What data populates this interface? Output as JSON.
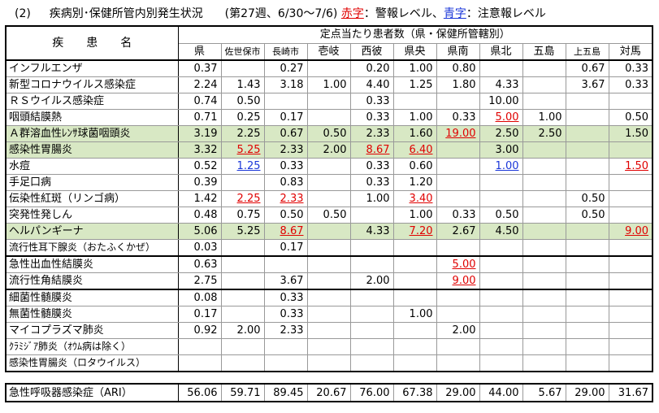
{
  "title": {
    "section": "(2)",
    "main": "疾病別･保健所管内別発生状況",
    "period": "(第27週、6/30〜7/6)",
    "legend_red": "赤字",
    "legend_red_text": "：警報レベル、",
    "legend_blue": "青字",
    "legend_blue_text": "：注意報レベル"
  },
  "header": {
    "disease_col": "疾　　患　　名",
    "group": "定点当たり患者数（県・保健所管轄別）",
    "regions": [
      "県",
      "佐世保市",
      "長崎市",
      "壱岐",
      "西彼",
      "県央",
      "県南",
      "県北",
      "五島",
      "上五島",
      "対馬"
    ]
  },
  "rows": [
    {
      "name": "インフルエンザ",
      "values": [
        "0.37",
        "",
        "0.27",
        "",
        "0.20",
        "1.00",
        "0.80",
        "",
        "",
        "0.67",
        "0.33"
      ],
      "status": [
        "",
        "",
        "",
        "",
        "",
        "",
        "",
        "",
        "",
        "",
        ""
      ]
    },
    {
      "name": "新型コロナウイルス感染症",
      "values": [
        "2.24",
        "1.43",
        "3.18",
        "1.00",
        "4.40",
        "1.25",
        "1.80",
        "4.33",
        "",
        "3.67",
        "0.33"
      ],
      "status": [
        "",
        "",
        "",
        "",
        "",
        "",
        "",
        "",
        "",
        "",
        ""
      ]
    },
    {
      "name": "ＲＳウイルス感染症",
      "values": [
        "0.74",
        "0.50",
        "",
        "",
        "0.33",
        "",
        "",
        "10.00",
        "",
        "",
        ""
      ],
      "status": [
        "",
        "",
        "",
        "",
        "",
        "",
        "",
        "",
        "",
        "",
        ""
      ]
    },
    {
      "name": "咽頭結膜熱",
      "values": [
        "0.71",
        "0.25",
        "0.17",
        "",
        "0.33",
        "1.00",
        "0.33",
        "5.00",
        "1.00",
        "",
        "0.50"
      ],
      "status": [
        "",
        "",
        "",
        "",
        "",
        "",
        "",
        "red",
        "",
        "",
        ""
      ]
    },
    {
      "name": "Ａ群溶血性ﾚﾝｻ球菌咽頭炎",
      "values": [
        "3.19",
        "2.25",
        "0.67",
        "0.50",
        "2.33",
        "1.60",
        "19.00",
        "2.50",
        "2.50",
        "",
        "1.50"
      ],
      "status": [
        "",
        "",
        "",
        "",
        "",
        "",
        "red",
        "",
        "",
        "",
        ""
      ],
      "highlight": true
    },
    {
      "name": "感染性胃腸炎",
      "values": [
        "3.32",
        "5.25",
        "2.33",
        "2.00",
        "8.67",
        "6.40",
        "",
        "3.00",
        "",
        "",
        ""
      ],
      "status": [
        "",
        "red",
        "",
        "",
        "red",
        "red",
        "",
        "",
        "",
        "",
        ""
      ],
      "highlight": true
    },
    {
      "name": "水痘",
      "values": [
        "0.52",
        "1.25",
        "0.33",
        "",
        "0.33",
        "0.60",
        "",
        "1.00",
        "",
        "",
        "1.50"
      ],
      "status": [
        "",
        "blue",
        "",
        "",
        "",
        "",
        "",
        "blue",
        "",
        "",
        "red"
      ]
    },
    {
      "name": "手足口病",
      "values": [
        "0.39",
        "",
        "0.83",
        "",
        "0.33",
        "1.20",
        "",
        "",
        "",
        "",
        ""
      ],
      "status": [
        "",
        "",
        "",
        "",
        "",
        "",
        "",
        "",
        "",
        "",
        ""
      ]
    },
    {
      "name": "伝染性紅斑（リンゴ病）",
      "values": [
        "1.42",
        "2.25",
        "2.33",
        "",
        "1.00",
        "3.40",
        "",
        "",
        "",
        "0.50",
        ""
      ],
      "status": [
        "",
        "red",
        "red",
        "",
        "",
        "red",
        "",
        "",
        "",
        "",
        ""
      ]
    },
    {
      "name": "突発性発しん",
      "values": [
        "0.48",
        "0.75",
        "0.50",
        "0.50",
        "",
        "1.00",
        "0.33",
        "0.50",
        "",
        "0.50",
        ""
      ],
      "status": [
        "",
        "",
        "",
        "",
        "",
        "",
        "",
        "",
        "",
        "",
        ""
      ]
    },
    {
      "name": "ヘルパンギーナ",
      "values": [
        "5.06",
        "5.25",
        "8.67",
        "",
        "4.33",
        "7.20",
        "2.67",
        "4.50",
        "",
        "",
        "9.00"
      ],
      "status": [
        "",
        "",
        "red",
        "",
        "",
        "red",
        "",
        "",
        "",
        "",
        "red"
      ],
      "highlight": true
    },
    {
      "name": "流行性耳下腺炎（おたふくかぜ）",
      "values": [
        "0.03",
        "",
        "0.17",
        "",
        "",
        "",
        "",
        "",
        "",
        "",
        ""
      ],
      "status": [
        "",
        "",
        "",
        "",
        "",
        "",
        "",
        "",
        "",
        "",
        ""
      ]
    },
    {
      "name": "急性出血性結膜炎",
      "values": [
        "0.63",
        "",
        "",
        "",
        "",
        "",
        "5.00",
        "",
        "",
        "",
        ""
      ],
      "status": [
        "",
        "",
        "",
        "",
        "",
        "",
        "red",
        "",
        "",
        "",
        ""
      ]
    },
    {
      "name": "流行性角結膜炎",
      "values": [
        "2.75",
        "",
        "3.67",
        "",
        "2.00",
        "",
        "9.00",
        "",
        "",
        "",
        ""
      ],
      "status": [
        "",
        "",
        "",
        "",
        "",
        "",
        "red",
        "",
        "",
        "",
        ""
      ]
    },
    {
      "name": "細菌性髄膜炎",
      "values": [
        "0.08",
        "",
        "0.33",
        "",
        "",
        "",
        "",
        "",
        "",
        "",
        ""
      ],
      "status": [
        "",
        "",
        "",
        "",
        "",
        "",
        "",
        "",
        "",
        "",
        ""
      ]
    },
    {
      "name": "無菌性髄膜炎",
      "values": [
        "0.17",
        "",
        "0.33",
        "",
        "",
        "1.00",
        "",
        "",
        "",
        "",
        ""
      ],
      "status": [
        "",
        "",
        "",
        "",
        "",
        "",
        "",
        "",
        "",
        "",
        ""
      ]
    },
    {
      "name": "マイコプラズマ肺炎",
      "values": [
        "0.92",
        "2.00",
        "2.33",
        "",
        "",
        "",
        "2.00",
        "",
        "",
        "",
        ""
      ],
      "status": [
        "",
        "",
        "",
        "",
        "",
        "",
        "",
        "",
        "",
        "",
        ""
      ]
    },
    {
      "name": "ｸﾗﾐｼﾞｱ肺炎（ｵｳﾑ病は除く）",
      "values": [
        "",
        "",
        "",
        "",
        "",
        "",
        "",
        "",
        "",
        "",
        ""
      ],
      "status": [
        "",
        "",
        "",
        "",
        "",
        "",
        "",
        "",
        "",
        "",
        ""
      ]
    },
    {
      "name": "感染性胃腸炎（ロタウイルス）",
      "values": [
        "",
        "",
        "",
        "",
        "",
        "",
        "",
        "",
        "",
        "",
        ""
      ],
      "status": [
        "",
        "",
        "",
        "",
        "",
        "",
        "",
        "",
        "",
        "",
        ""
      ]
    }
  ],
  "ari": {
    "name": "急性呼吸器感染症（ARI）",
    "values": [
      "56.06",
      "59.71",
      "89.45",
      "20.67",
      "76.00",
      "67.38",
      "29.00",
      "44.00",
      "5.67",
      "29.00",
      "31.67"
    ]
  },
  "colors": {
    "alarm": "#e00000",
    "advisory": "#1a36d9",
    "highlight": "#d8e8c4"
  }
}
